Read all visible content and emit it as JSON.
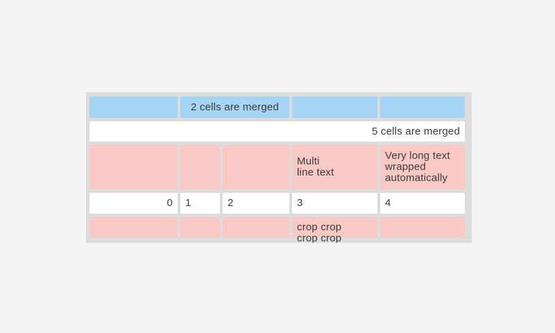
{
  "page": {
    "background": "#f4f4f4"
  },
  "table": {
    "widget_name": "table-widget",
    "colors": {
      "header_blue": "#a6d4f4",
      "row_pink": "#fac8c5",
      "cell_white": "#ffffff",
      "border_gray": "#dcdcdc",
      "text": "#3a3a3a"
    },
    "rows": [
      {
        "cells": [
          {
            "bg": "blue",
            "text": ""
          },
          {
            "bg": "blue",
            "span": 2,
            "align": "center",
            "text": "2 cells are merged"
          },
          {
            "bg": "blue",
            "text": ""
          },
          {
            "bg": "blue",
            "text": ""
          }
        ]
      },
      {
        "cells": [
          {
            "bg": "white",
            "span": 5,
            "align": "right",
            "text": "5 cells are merged"
          }
        ]
      },
      {
        "cells": [
          {
            "bg": "pink",
            "text": ""
          },
          {
            "bg": "pink",
            "text": ""
          },
          {
            "bg": "pink",
            "text": ""
          },
          {
            "bg": "pink",
            "text": "Multi\nline text"
          },
          {
            "bg": "pink",
            "text": "Very long text wrapped automatically"
          }
        ]
      },
      {
        "cells": [
          {
            "bg": "white",
            "align": "right",
            "text": "0"
          },
          {
            "bg": "white",
            "text": "1"
          },
          {
            "bg": "white",
            "text": "2"
          },
          {
            "bg": "white",
            "text": "3"
          },
          {
            "bg": "white",
            "text": "4"
          }
        ]
      },
      {
        "cells": [
          {
            "bg": "pink",
            "text": ""
          },
          {
            "bg": "pink",
            "text": ""
          },
          {
            "bg": "pink",
            "text": ""
          },
          {
            "bg": "pink",
            "crop": true,
            "text": "crop crop crop crop crop crop"
          },
          {
            "bg": "pink",
            "text": ""
          }
        ]
      }
    ]
  }
}
